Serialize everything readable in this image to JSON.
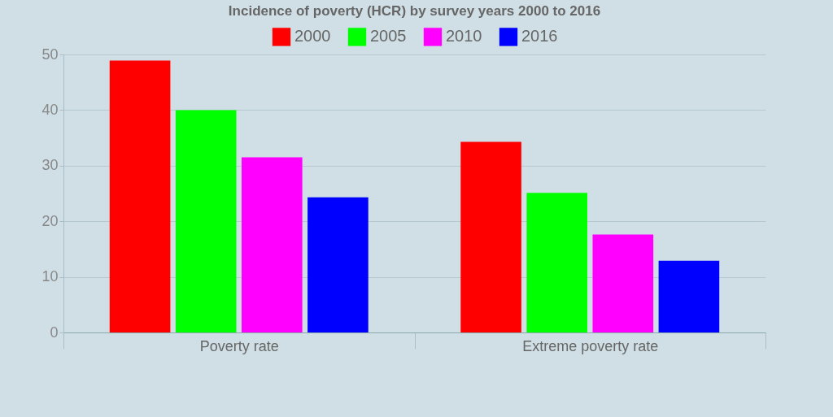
{
  "chart_data": {
    "type": "bar",
    "title": "Incidence of poverty (HCR) by survey years 2000 to 2016",
    "categories": [
      "Poverty rate",
      "Extreme poverty rate"
    ],
    "series": [
      {
        "name": "2000",
        "color": "#ff0000",
        "values": [
          48.9,
          34.3
        ]
      },
      {
        "name": "2005",
        "color": "#00ff00",
        "values": [
          40.0,
          25.1
        ]
      },
      {
        "name": "2010",
        "color": "#ff00ff",
        "values": [
          31.5,
          17.6
        ]
      },
      {
        "name": "2016",
        "color": "#0000ff",
        "values": [
          24.3,
          12.9
        ]
      }
    ],
    "ylim": [
      0,
      50
    ],
    "yticks": [
      0,
      10,
      20,
      30,
      40,
      50
    ],
    "grid": "y",
    "legend": "top"
  }
}
